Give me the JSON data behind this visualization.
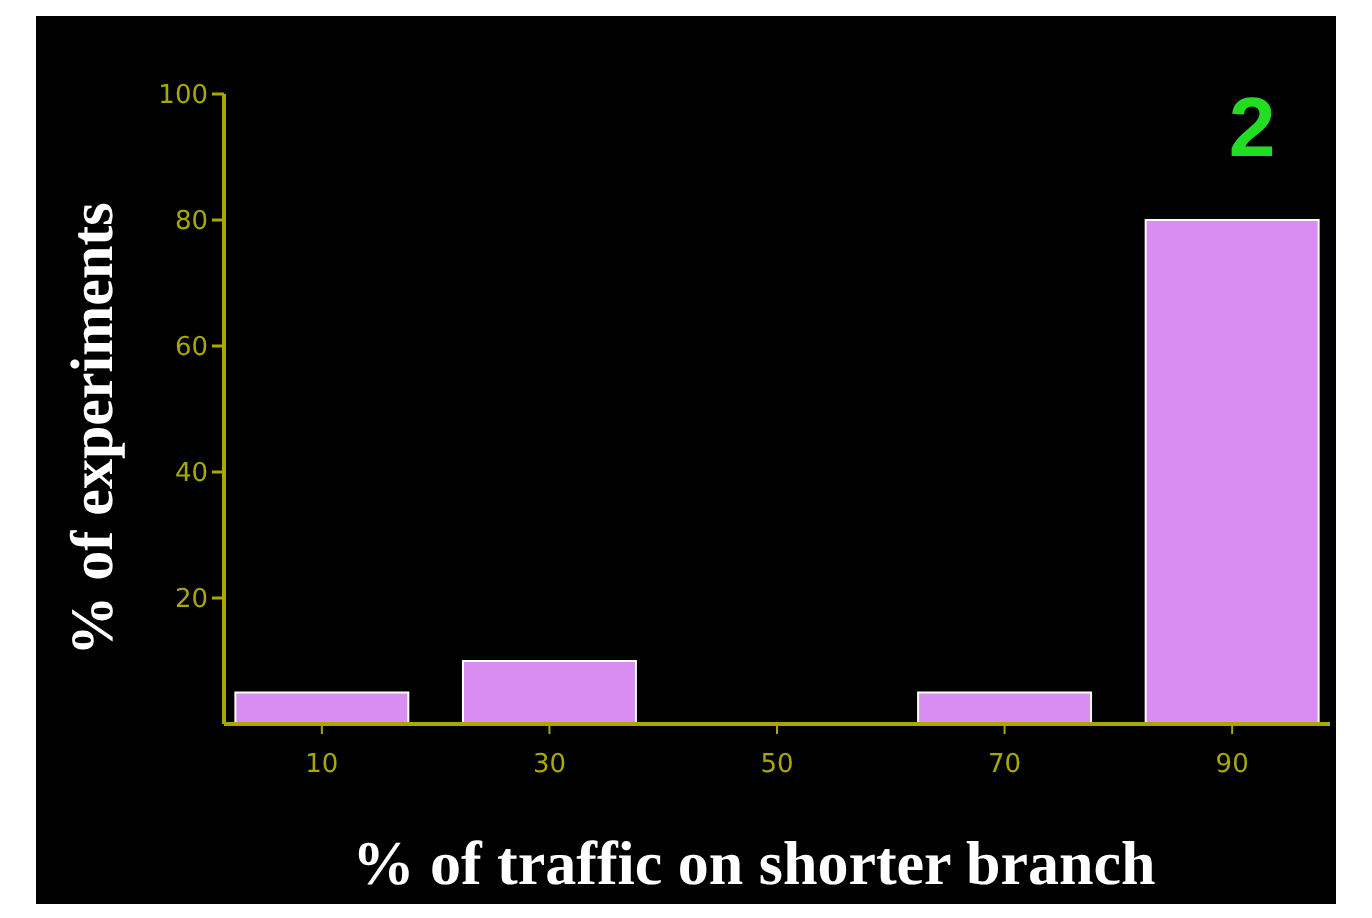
{
  "chart_data": {
    "type": "bar",
    "categories": [
      "10",
      "30",
      "50",
      "70",
      "90"
    ],
    "values": [
      5,
      10,
      0,
      5,
      80
    ],
    "color": "#d98cf2",
    "xlabel": "% of traffic on shorter branch",
    "ylabel": "% of experiments",
    "ylim": [
      0,
      100
    ],
    "yticks": [
      20,
      40,
      60,
      80,
      100
    ],
    "grid": false,
    "annotations": [
      "2"
    ]
  }
}
